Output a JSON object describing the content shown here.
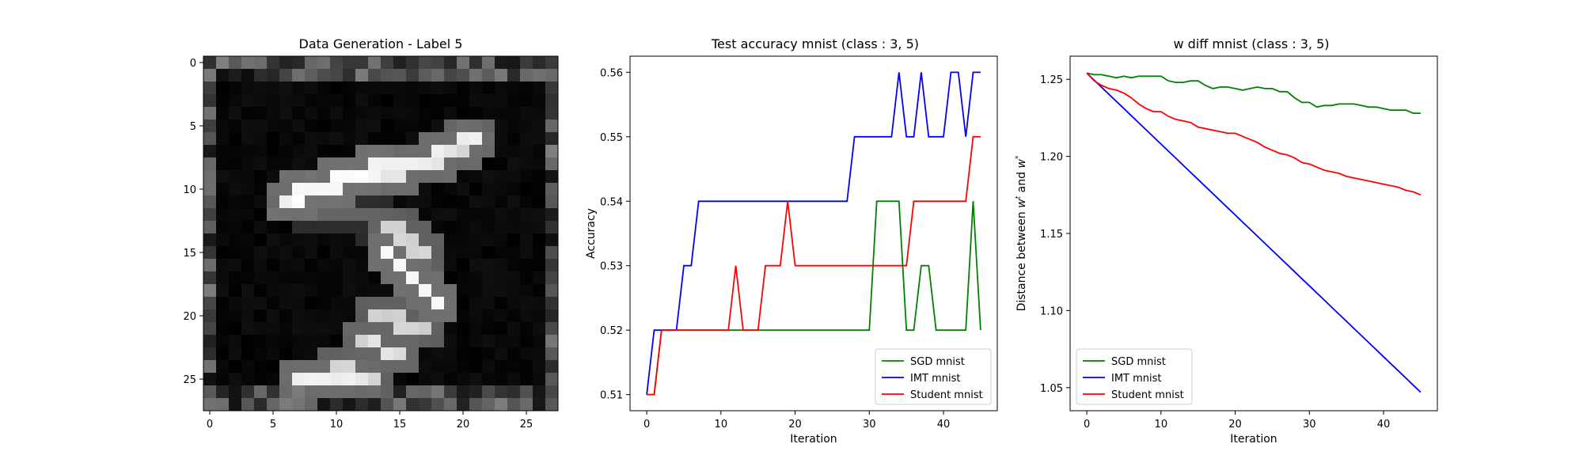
{
  "chart_data": [
    {
      "type": "heatmap",
      "title": "Data Generation - Label 5",
      "colormap": "gray",
      "x_ticks": [
        0,
        5,
        10,
        15,
        20,
        25
      ],
      "y_ticks": [
        0,
        5,
        10,
        15,
        20,
        25
      ],
      "xlim": [
        -0.5,
        27.5
      ],
      "ylim": [
        27.5,
        -0.5
      ],
      "size": [
        28,
        28
      ],
      "description": "28x28 grayscale pixel grid showing a generated digit '5'",
      "strokes": [
        {
          "from": [
            14,
            9
          ],
          "to": [
            21,
            6
          ],
          "brightness": 0.95
        },
        {
          "from": [
            6,
            11
          ],
          "to": [
            14,
            8
          ],
          "brightness": 1.0
        },
        {
          "from": [
            8,
            11.5
          ],
          "to": [
            13,
            12.5
          ],
          "brightness": 0.4
        },
        {
          "from": [
            14,
            13
          ],
          "to": [
            17,
            15
          ],
          "brightness": 0.85
        },
        {
          "from": [
            14,
            15
          ],
          "to": [
            18,
            19
          ],
          "brightness": 0.98
        },
        {
          "from": [
            13,
            20
          ],
          "to": [
            17,
            21
          ],
          "brightness": 0.85
        },
        {
          "from": [
            12,
            22
          ],
          "to": [
            15,
            23
          ],
          "brightness": 0.9
        },
        {
          "from": [
            7,
            25
          ],
          "to": [
            12,
            25
          ],
          "brightness": 0.95
        },
        {
          "from": [
            10,
            24
          ],
          "to": [
            13,
            25
          ],
          "brightness": 0.85
        }
      ],
      "noise_edges": true
    },
    {
      "type": "line",
      "title": "Test accuracy mnist (class : 3, 5)",
      "xlabel": "Iteration",
      "ylabel": "Accuracy",
      "xlim": [
        -2.25,
        47.25
      ],
      "ylim": [
        0.5075,
        0.5625
      ],
      "x_ticks": [
        0,
        10,
        20,
        30,
        40
      ],
      "y_ticks": [
        0.51,
        0.52,
        0.53,
        0.54,
        0.55,
        0.56
      ],
      "y_tick_labels": [
        "0.51",
        "0.52",
        "0.53",
        "0.54",
        "0.55",
        "0.56"
      ],
      "legend_position": "lower-right",
      "x": [
        0,
        1,
        2,
        3,
        4,
        5,
        6,
        7,
        8,
        9,
        10,
        11,
        12,
        13,
        14,
        15,
        16,
        17,
        18,
        19,
        20,
        21,
        22,
        23,
        24,
        25,
        26,
        27,
        28,
        29,
        30,
        31,
        32,
        33,
        34,
        35,
        36,
        37,
        38,
        39,
        40,
        41,
        42,
        43,
        44,
        45
      ],
      "series": [
        {
          "name": "SGD mnist",
          "color": "#008000",
          "values": [
            0.51,
            0.51,
            0.52,
            0.52,
            0.52,
            0.52,
            0.52,
            0.52,
            0.52,
            0.52,
            0.52,
            0.52,
            0.52,
            0.52,
            0.52,
            0.52,
            0.52,
            0.52,
            0.52,
            0.52,
            0.52,
            0.52,
            0.52,
            0.52,
            0.52,
            0.52,
            0.52,
            0.52,
            0.52,
            0.52,
            0.52,
            0.54,
            0.54,
            0.54,
            0.54,
            0.52,
            0.52,
            0.53,
            0.53,
            0.52,
            0.52,
            0.52,
            0.52,
            0.52,
            0.54,
            0.52
          ]
        },
        {
          "name": "IMT mnist",
          "color": "#0000ff",
          "values": [
            0.51,
            0.52,
            0.52,
            0.52,
            0.52,
            0.53,
            0.53,
            0.54,
            0.54,
            0.54,
            0.54,
            0.54,
            0.54,
            0.54,
            0.54,
            0.54,
            0.54,
            0.54,
            0.54,
            0.54,
            0.54,
            0.54,
            0.54,
            0.54,
            0.54,
            0.54,
            0.54,
            0.54,
            0.55,
            0.55,
            0.55,
            0.55,
            0.55,
            0.55,
            0.56,
            0.55,
            0.55,
            0.56,
            0.55,
            0.55,
            0.55,
            0.56,
            0.56,
            0.55,
            0.56,
            0.56
          ]
        },
        {
          "name": "Student mnist",
          "color": "#ff0000",
          "values": [
            0.51,
            0.51,
            0.52,
            0.52,
            0.52,
            0.52,
            0.52,
            0.52,
            0.52,
            0.52,
            0.52,
            0.52,
            0.53,
            0.52,
            0.52,
            0.52,
            0.53,
            0.53,
            0.53,
            0.54,
            0.53,
            0.53,
            0.53,
            0.53,
            0.53,
            0.53,
            0.53,
            0.53,
            0.53,
            0.53,
            0.53,
            0.53,
            0.53,
            0.53,
            0.53,
            0.53,
            0.54,
            0.54,
            0.54,
            0.54,
            0.54,
            0.54,
            0.54,
            0.54,
            0.55,
            0.55
          ]
        }
      ]
    },
    {
      "type": "line",
      "title": "w diff mnist (class : 3, 5)",
      "xlabel": "Iteration",
      "ylabel": "Distance between w^t and w^*",
      "ylabel_parts": {
        "prefix": "Distance between ",
        "w1": "w",
        "sup1": "t",
        "mid": " and ",
        "w2": "w",
        "sup2": "*"
      },
      "xlim": [
        -2.25,
        47.25
      ],
      "ylim": [
        1.035,
        1.265
      ],
      "x_ticks": [
        0,
        10,
        20,
        30,
        40
      ],
      "y_ticks": [
        1.05,
        1.1,
        1.15,
        1.2,
        1.25
      ],
      "y_tick_labels": [
        "1.05",
        "1.10",
        "1.15",
        "1.20",
        "1.25"
      ],
      "legend_position": "lower-left",
      "x": [
        0,
        1,
        2,
        3,
        4,
        5,
        6,
        7,
        8,
        9,
        10,
        11,
        12,
        13,
        14,
        15,
        16,
        17,
        18,
        19,
        20,
        21,
        22,
        23,
        24,
        25,
        26,
        27,
        28,
        29,
        30,
        31,
        32,
        33,
        34,
        35,
        36,
        37,
        38,
        39,
        40,
        41,
        42,
        43,
        44,
        45
      ],
      "series": [
        {
          "name": "SGD mnist",
          "color": "#008000",
          "values": [
            1.254,
            1.253,
            1.253,
            1.252,
            1.251,
            1.252,
            1.251,
            1.252,
            1.252,
            1.252,
            1.252,
            1.249,
            1.248,
            1.248,
            1.249,
            1.249,
            1.246,
            1.244,
            1.245,
            1.245,
            1.244,
            1.243,
            1.244,
            1.245,
            1.244,
            1.244,
            1.242,
            1.242,
            1.238,
            1.235,
            1.235,
            1.232,
            1.233,
            1.233,
            1.234,
            1.234,
            1.234,
            1.233,
            1.232,
            1.232,
            1.231,
            1.23,
            1.23,
            1.23,
            1.228,
            1.228
          ]
        },
        {
          "name": "IMT mnist",
          "color": "#0000ff",
          "values": [
            1.254,
            1.2494,
            1.2448,
            1.2402,
            1.2356,
            1.231,
            1.2264,
            1.2218,
            1.2172,
            1.2126,
            1.208,
            1.2034,
            1.1988,
            1.1942,
            1.1896,
            1.185,
            1.1804,
            1.1758,
            1.1712,
            1.1666,
            1.162,
            1.1574,
            1.1528,
            1.1482,
            1.1436,
            1.139,
            1.1344,
            1.1298,
            1.1252,
            1.1206,
            1.116,
            1.1114,
            1.1068,
            1.1022,
            1.0976,
            1.093,
            1.0884,
            1.0838,
            1.0792,
            1.0746,
            1.07,
            1.0654,
            1.0608,
            1.0562,
            1.0516,
            1.047
          ]
        },
        {
          "name": "Student mnist",
          "color": "#ff0000",
          "values": [
            1.254,
            1.249,
            1.246,
            1.244,
            1.243,
            1.241,
            1.238,
            1.234,
            1.231,
            1.229,
            1.229,
            1.226,
            1.224,
            1.223,
            1.222,
            1.219,
            1.218,
            1.217,
            1.216,
            1.215,
            1.215,
            1.213,
            1.211,
            1.209,
            1.206,
            1.204,
            1.202,
            1.201,
            1.199,
            1.196,
            1.195,
            1.193,
            1.191,
            1.19,
            1.189,
            1.187,
            1.186,
            1.185,
            1.184,
            1.183,
            1.182,
            1.181,
            1.18,
            1.178,
            1.177,
            1.175
          ]
        }
      ]
    }
  ]
}
